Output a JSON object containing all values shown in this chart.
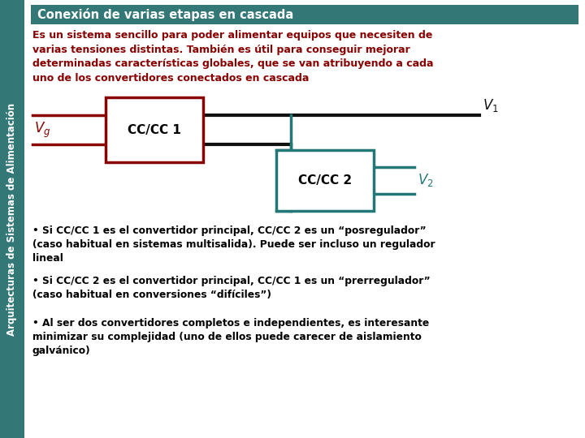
{
  "title": "Conexión de varias etapas en cascada",
  "title_bg": "#337777",
  "title_color": "#ffffff",
  "sidebar_text": "Arquitecturas de Sistemas de Alimentación",
  "sidebar_bg": "#337777",
  "main_bg": "#ffffff",
  "intro_text": "Es un sistema sencillo para poder alimentar equipos que necesiten de\nvarias tensiones distintas. También es útil para conseguir mejorar\ndeterminadas características globales, que se van atribuyendo a cada\nuno de los convertidores conectados en cascada",
  "intro_color": "#880000",
  "bullet1": "• Si CC/CC 1 es el convertidor principal, CC/CC 2 es un “posregulador”\n(caso habitual en sistemas multisalida). Puede ser incluso un regulador\nlineal",
  "bullet2": "• Si CC/CC 2 es el convertidor principal, CC/CC 1 es un “prerregulador”\n(caso habitual en conversiones “difíciles”)",
  "bullet3": "• Al ser dos convertidores completos e independientes, es interesante\nminimizar su complejidad (uno de ellos puede carecer de aislamiento\ngalvánico)",
  "bullet_color": "#000000",
  "box1_color": "#880000",
  "box2_color": "#227777",
  "wire1_color": "#880000",
  "wire2_color": "#227777",
  "wire_black": "#111111",
  "vg_color": "#880000",
  "v1_color": "#111111",
  "v2_color": "#227777"
}
